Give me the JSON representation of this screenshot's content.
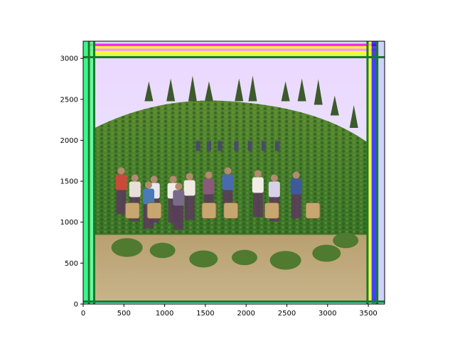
{
  "chart_data": {
    "type": "image",
    "title": "",
    "xlabel": "",
    "ylabel": "",
    "xlim": [
      0,
      3700
    ],
    "ylim": [
      0,
      3210
    ],
    "x_ticks": [
      0,
      500,
      1000,
      1500,
      2000,
      2500,
      3000,
      3500
    ],
    "y_ticks": [
      0,
      500,
      1000,
      1500,
      2000,
      2500,
      3000
    ],
    "grid": false,
    "image_description_content": "color photograph of women and children standing in a tea plantation on a hillside, holding wicker baskets, with trees along the ridge",
    "guide_lines": {
      "vertical_x": [
        70,
        135,
        3490,
        3610
      ],
      "horizontal_y": [
        30,
        3015
      ],
      "color": "#1a7a2a"
    },
    "border_tints": [
      "#ff00ff",
      "#ffff00",
      "#00ff66",
      "#0000ff",
      "#00ffff"
    ]
  }
}
